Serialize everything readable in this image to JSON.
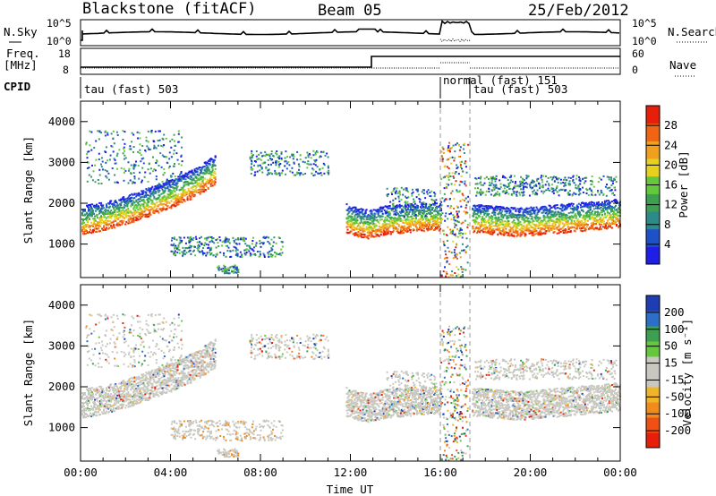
{
  "header": {
    "station": "Blackstone (fitACF)",
    "beam": "Beam 05",
    "date": "25/Feb/2012"
  },
  "top_panels": {
    "nsky_label": "N.Sky",
    "nsearch_label": "N.Search",
    "noise_ticks_left": [
      "10^5",
      "10^0"
    ],
    "noise_ticks_right": [
      "10^5",
      "10^0"
    ],
    "freq_label": "Freq.",
    "freq_unit": "[MHz]",
    "freq_ticks": [
      "18",
      "8"
    ],
    "nave_label": "Nave",
    "nave_ticks": [
      "60",
      "0"
    ],
    "cpid_label": "CPID",
    "cpid_segments": [
      {
        "label": "tau (fast) 503"
      },
      {
        "label": "normal (fast) 151"
      },
      {
        "label": "tau (fast) 503"
      }
    ]
  },
  "colors": {
    "power_scale": [
      "#1e1ee6",
      "#1e50c8",
      "#2d8a8a",
      "#3ca050",
      "#64c83c",
      "#e6d21e",
      "#f0a01e",
      "#f06414",
      "#e61e0a"
    ],
    "velocity_scale": [
      "#e61e0a",
      "#f05014",
      "#f08c1e",
      "#f0b428",
      "#c8c8c0",
      "#c8c8c0",
      "#64c83c",
      "#3ca050",
      "#2d6ec8",
      "#1e3cb4"
    ]
  },
  "chart_data": [
    {
      "type": "heatmap",
      "panel": "power",
      "ylabel": "Slant Range [km]",
      "xlabel": "Time UT",
      "x_ticks": [
        "00:00",
        "04:00",
        "08:00",
        "12:00",
        "16:00",
        "20:00",
        "00:00"
      ],
      "y_ticks": [
        "1000",
        "2000",
        "3000",
        "4000"
      ],
      "xlim": [
        0,
        24
      ],
      "ylim": [
        180,
        4500
      ],
      "colorbar_label": "Power [dB]",
      "colorbar_ticks": [
        "28",
        "24",
        "20",
        "16",
        "12",
        "8",
        "4"
      ],
      "colorbar_range": [
        0,
        32
      ],
      "scatter_bands": [
        {
          "t": [
            0.0,
            1.0,
            2.0,
            3.0,
            4.0,
            5.0,
            6.0
          ],
          "r": [
            1250,
            1350,
            1500,
            1700,
            1900,
            2150,
            2500
          ]
        },
        {
          "t": [
            11.8,
            12.3,
            12.8,
            13.5,
            14.5,
            15.5,
            16.0
          ],
          "r": [
            1300,
            1200,
            1150,
            1250,
            1300,
            1350,
            1350
          ]
        },
        {
          "t": [
            17.4,
            18.5,
            19.5,
            20.5,
            21.5,
            22.5,
            23.5,
            24.0
          ],
          "r": [
            1300,
            1250,
            1200,
            1250,
            1300,
            1350,
            1400,
            1450
          ]
        }
      ]
    },
    {
      "type": "heatmap",
      "panel": "velocity",
      "ylabel": "Slant Range [km]",
      "xlabel": "Time UT",
      "x_ticks": [
        "00:00",
        "04:00",
        "08:00",
        "12:00",
        "16:00",
        "20:00",
        "00:00"
      ],
      "y_ticks": [
        "1000",
        "2000",
        "3000",
        "4000"
      ],
      "xlim": [
        0,
        24
      ],
      "ylim": [
        180,
        4500
      ],
      "colorbar_label": "Velocity [m s⁻¹]",
      "colorbar_ticks": [
        "200",
        "100",
        "50",
        "15",
        "-15",
        "-50",
        "-100",
        "-200"
      ],
      "colorbar_range": [
        -250,
        250
      ]
    }
  ],
  "xlabel": "Time UT",
  "x_ticks": [
    "00:00",
    "04:00",
    "08:00",
    "12:00",
    "16:00",
    "20:00",
    "00:00"
  ]
}
